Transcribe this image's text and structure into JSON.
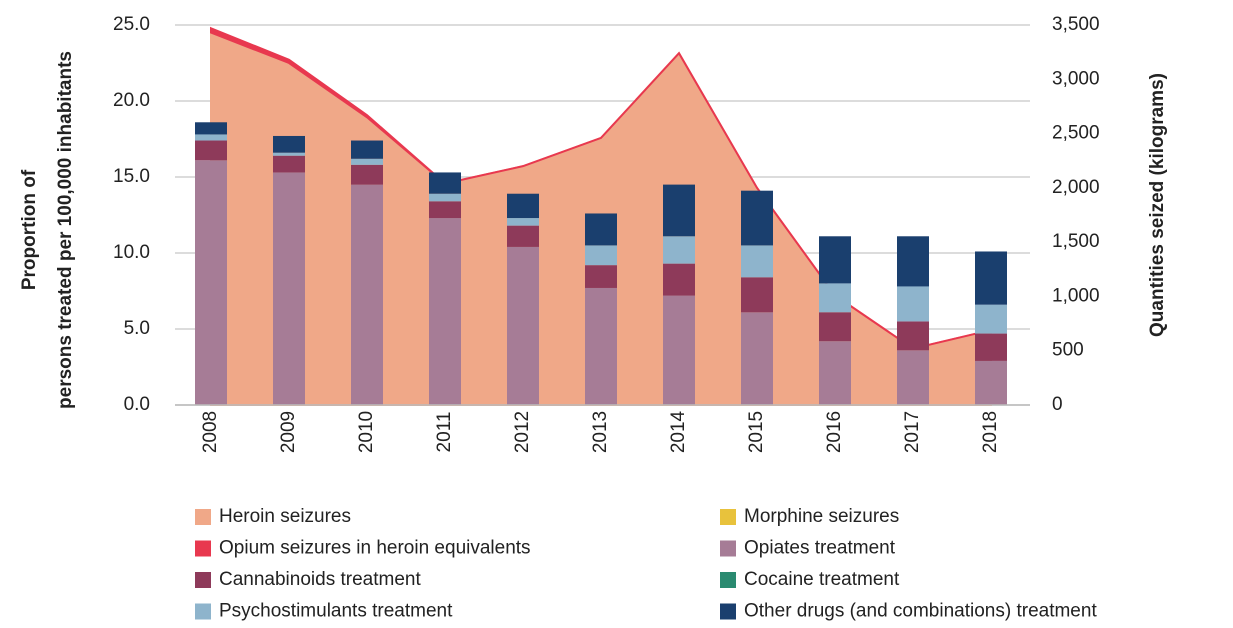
{
  "chart_data": {
    "type": "bar",
    "categories": [
      "2008",
      "2009",
      "2010",
      "2011",
      "2012",
      "2013",
      "2014",
      "2015",
      "2016",
      "2017",
      "2018"
    ],
    "ylabel": [
      "Proportion of",
      "persons treated per 100,000 inhabitants"
    ],
    "y2label": "Quantities seized (kilograms)",
    "ylim": [
      0,
      25
    ],
    "yticks": [
      {
        "value": 0,
        "label": "0.0"
      },
      {
        "value": 5,
        "label": "5.0"
      },
      {
        "value": 10,
        "label": "10.0"
      },
      {
        "value": 15,
        "label": "15.0"
      },
      {
        "value": 20,
        "label": "20.0"
      },
      {
        "value": 25,
        "label": "25.0"
      }
    ],
    "y2lim": [
      0,
      3500
    ],
    "y2ticks": [
      0,
      500,
      {
        "value": 1000,
        "label": "1,000"
      },
      {
        "value": 1500,
        "label": "1,500"
      },
      {
        "value": 2000,
        "label": "2,000"
      },
      {
        "value": 2500,
        "label": "2,500"
      },
      {
        "value": 3000,
        "label": "3,000"
      },
      {
        "value": 3500,
        "label": "3,500"
      }
    ],
    "grid": true,
    "series": [
      {
        "name": "Heroin seizures",
        "color": "#f0a888",
        "type": "area",
        "axis": "y2",
        "values": [
          3430,
          3150,
          2650,
          2040,
          2200,
          2460,
          3240,
          2000,
          1010,
          520,
          690
        ]
      },
      {
        "name": "Morphine seizures",
        "color": "#e8c23c",
        "type": "area",
        "axis": "y2",
        "values": [
          0,
          0,
          0,
          0,
          0,
          0,
          0,
          0,
          0,
          0,
          0
        ]
      },
      {
        "name": "Opium seizures in heroin equivalents",
        "color": "#e8384f",
        "type": "area",
        "axis": "y2",
        "values": [
          40,
          30,
          20,
          0,
          0,
          0,
          0,
          0,
          0,
          0,
          0
        ]
      },
      {
        "name": "Opiates treatment",
        "color": "#a67c96",
        "type": "bar",
        "values": [
          16.1,
          15.3,
          14.5,
          12.3,
          10.4,
          7.7,
          7.2,
          6.1,
          4.2,
          3.6,
          2.9
        ]
      },
      {
        "name": "Cannabinoids treatment",
        "color": "#8e3a5a",
        "type": "bar",
        "values": [
          1.3,
          1.1,
          1.3,
          1.1,
          1.4,
          1.5,
          2.1,
          2.3,
          1.9,
          1.9,
          1.8
        ]
      },
      {
        "name": "Cocaine treatment",
        "color": "#2a8a70",
        "type": "bar",
        "values": [
          0,
          0,
          0,
          0,
          0,
          0,
          0,
          0,
          0,
          0,
          0
        ]
      },
      {
        "name": "Psychostimulants treatment",
        "color": "#8eb4cc",
        "type": "bar",
        "values": [
          0.4,
          0.2,
          0.4,
          0.5,
          0.5,
          1.3,
          1.8,
          2.1,
          1.9,
          2.3,
          1.9
        ]
      },
      {
        "name": "Other drugs (and combinations) treatment",
        "color": "#1a3f6e",
        "type": "bar",
        "values": [
          0.8,
          1.1,
          1.2,
          1.4,
          1.6,
          2.1,
          3.4,
          3.6,
          3.1,
          3.3,
          3.5
        ]
      }
    ]
  }
}
